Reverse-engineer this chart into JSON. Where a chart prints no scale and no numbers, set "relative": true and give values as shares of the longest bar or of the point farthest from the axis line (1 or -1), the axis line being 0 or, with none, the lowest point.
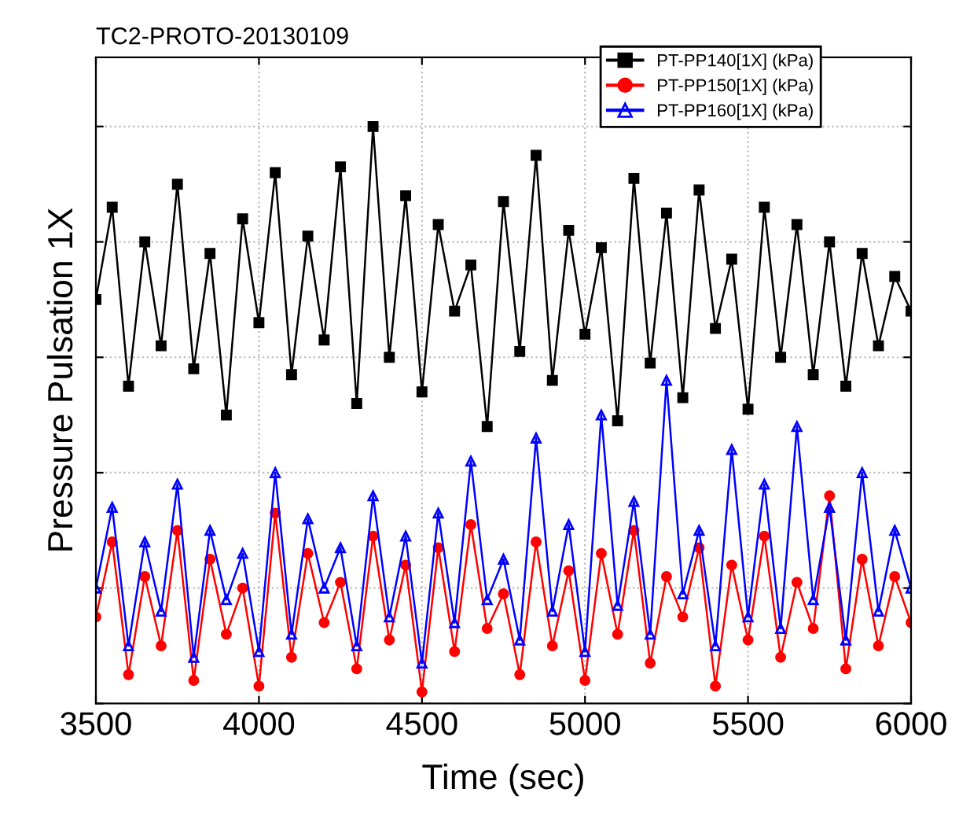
{
  "chart_data": {
    "type": "line",
    "title": "TC2-PROTO-20130109",
    "xlabel": "Time (sec)",
    "ylabel": "Pressure Pulsation 1X",
    "relative": true,
    "xlim": [
      3500,
      6000
    ],
    "xticks": [
      3500,
      4000,
      4500,
      5000,
      5500,
      6000
    ],
    "grid": true,
    "legend": "top right",
    "line_style": "solid",
    "x": [
      3500,
      3550,
      3600,
      3650,
      3700,
      3750,
      3800,
      3850,
      3900,
      3950,
      4000,
      4050,
      4100,
      4150,
      4200,
      4250,
      4300,
      4350,
      4400,
      4450,
      4500,
      4550,
      4600,
      4650,
      4700,
      4750,
      4800,
      4850,
      4900,
      4950,
      5000,
      5050,
      5100,
      5150,
      5200,
      5250,
      5300,
      5350,
      5400,
      5450,
      5500,
      5550,
      5600,
      5650,
      5700,
      5750,
      5800,
      5850,
      5900,
      5950,
      6000
    ],
    "series": [
      {
        "name": "PT-PP140[1X] (kPa)",
        "color": "#000000",
        "marker": "square",
        "values": [
          0.7,
          0.86,
          0.55,
          0.8,
          0.62,
          0.9,
          0.58,
          0.78,
          0.5,
          0.84,
          0.66,
          0.92,
          0.57,
          0.81,
          0.63,
          0.93,
          0.52,
          1.0,
          0.6,
          0.88,
          0.54,
          0.83,
          0.68,
          0.76,
          0.48,
          0.87,
          0.61,
          0.95,
          0.56,
          0.82,
          0.64,
          0.79,
          0.49,
          0.91,
          0.59,
          0.85,
          0.53,
          0.89,
          0.65,
          0.77,
          0.51,
          0.86,
          0.6,
          0.83,
          0.57,
          0.8,
          0.55,
          0.78,
          0.62,
          0.74,
          0.68
        ]
      },
      {
        "name": "PT-PP150[1X] (kPa)",
        "color": "#ff0000",
        "marker": "circle",
        "values": [
          0.15,
          0.28,
          0.05,
          0.22,
          0.1,
          0.3,
          0.04,
          0.25,
          0.12,
          0.2,
          0.03,
          0.33,
          0.08,
          0.26,
          0.14,
          0.21,
          0.06,
          0.29,
          0.11,
          0.24,
          0.02,
          0.27,
          0.09,
          0.31,
          0.13,
          0.19,
          0.05,
          0.28,
          0.1,
          0.23,
          0.04,
          0.26,
          0.12,
          0.3,
          0.07,
          0.22,
          0.15,
          0.27,
          0.03,
          0.24,
          0.11,
          0.29,
          0.08,
          0.21,
          0.13,
          0.36,
          0.06,
          0.25,
          0.1,
          0.22,
          0.14
        ]
      },
      {
        "name": "PT-PP160[1X] (kPa)",
        "color": "#0000ff",
        "marker": "triangle",
        "values": [
          0.2,
          0.34,
          0.1,
          0.28,
          0.16,
          0.38,
          0.08,
          0.3,
          0.18,
          0.26,
          0.09,
          0.4,
          0.12,
          0.32,
          0.2,
          0.27,
          0.1,
          0.36,
          0.15,
          0.29,
          0.07,
          0.33,
          0.14,
          0.42,
          0.18,
          0.25,
          0.11,
          0.46,
          0.16,
          0.31,
          0.09,
          0.5,
          0.17,
          0.35,
          0.12,
          0.56,
          0.19,
          0.3,
          0.1,
          0.44,
          0.15,
          0.38,
          0.13,
          0.48,
          0.18,
          0.34,
          0.11,
          0.4,
          0.16,
          0.3,
          0.2
        ]
      }
    ]
  }
}
